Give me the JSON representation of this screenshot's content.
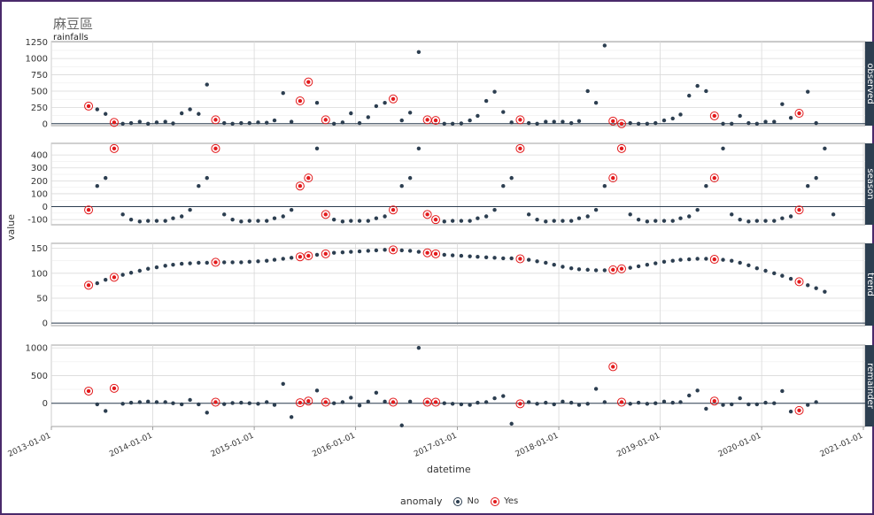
{
  "title": "麻豆區",
  "subtitle": "rainfalls",
  "colors": {
    "no": "#2c3e50",
    "yes": "#e31a1c",
    "strip": "#2c3e50",
    "grid": "#d9d9d9"
  },
  "chart_data": {
    "type": "scatter",
    "xlabel": "datetime",
    "ylabel": "value",
    "x_ticks": [
      "2013-01-01",
      "2014-01-01",
      "2015-01-01",
      "2016-01-01",
      "2017-01-01",
      "2018-01-01",
      "2019-01-01",
      "2020-01-01",
      "2021-01-01"
    ],
    "x_range": [
      "2013-01-01",
      "2021-01-01"
    ],
    "dates": [
      "2013-05",
      "2013-06",
      "2013-07",
      "2013-08",
      "2013-09",
      "2013-10",
      "2013-11",
      "2013-12",
      "2014-01",
      "2014-02",
      "2014-03",
      "2014-04",
      "2014-05",
      "2014-06",
      "2014-07",
      "2014-08",
      "2014-09",
      "2014-10",
      "2014-11",
      "2014-12",
      "2015-01",
      "2015-02",
      "2015-03",
      "2015-04",
      "2015-05",
      "2015-06",
      "2015-07",
      "2015-08",
      "2015-09",
      "2015-10",
      "2015-11",
      "2015-12",
      "2016-01",
      "2016-02",
      "2016-03",
      "2016-04",
      "2016-05",
      "2016-06",
      "2016-07",
      "2016-08",
      "2016-09",
      "2016-10",
      "2016-11",
      "2016-12",
      "2017-01",
      "2017-02",
      "2017-03",
      "2017-04",
      "2017-05",
      "2017-06",
      "2017-07",
      "2017-08",
      "2017-09",
      "2017-10",
      "2017-11",
      "2017-12",
      "2018-01",
      "2018-02",
      "2018-03",
      "2018-04",
      "2018-05",
      "2018-06",
      "2018-07",
      "2018-08",
      "2018-09",
      "2018-10",
      "2018-11",
      "2018-12",
      "2019-01",
      "2019-02",
      "2019-03",
      "2019-04",
      "2019-05",
      "2019-06",
      "2019-07",
      "2019-08",
      "2019-09",
      "2019-10",
      "2019-11",
      "2019-12",
      "2020-01",
      "2020-02",
      "2020-03",
      "2020-04",
      "2020-05",
      "2020-06",
      "2020-07",
      "2020-08",
      "2020-09"
    ],
    "anomaly_dates": [
      "2013-05",
      "2013-08",
      "2014-08",
      "2015-06",
      "2015-07",
      "2015-09",
      "2016-05",
      "2016-09",
      "2016-10",
      "2017-08",
      "2018-07",
      "2018-08",
      "2019-07",
      "2020-05"
    ],
    "legend": {
      "title": "anomaly",
      "entries": [
        "No",
        "Yes"
      ],
      "placement": "bottom"
    },
    "facets": [
      {
        "name": "observed",
        "ylim": [
          -30,
          1260
        ],
        "yticks": [
          0,
          250,
          500,
          750,
          1000,
          1250
        ],
        "values": [
          270,
          220,
          150,
          20,
          0,
          10,
          30,
          0,
          20,
          30,
          5,
          160,
          220,
          150,
          600,
          60,
          10,
          0,
          10,
          10,
          20,
          15,
          50,
          470,
          30,
          350,
          640,
          320,
          60,
          0,
          20,
          160,
          10,
          100,
          270,
          320,
          380,
          50,
          170,
          1100,
          60,
          50,
          0,
          0,
          5,
          50,
          120,
          350,
          490,
          180,
          20,
          60,
          10,
          0,
          30,
          30,
          30,
          10,
          40,
          500,
          320,
          1200,
          40,
          0,
          10,
          0,
          0,
          10,
          50,
          80,
          140,
          430,
          580,
          500,
          120,
          0,
          0,
          120,
          10,
          0,
          30,
          30,
          300,
          90,
          160,
          490,
          10
        ]
      },
      {
        "name": "season",
        "ylim": [
          -140,
          490
        ],
        "yticks": [
          -100,
          0,
          100,
          200,
          300,
          400
        ],
        "values": [
          -25,
          160,
          222,
          450,
          -60,
          -100,
          -115,
          -110,
          -110,
          -110,
          -90,
          -75,
          -25,
          160,
          222,
          450,
          -60,
          -100,
          -115,
          -110,
          -110,
          -110,
          -90,
          -75,
          -25,
          160,
          222,
          450,
          -60,
          -100,
          -115,
          -110,
          -110,
          -110,
          -90,
          -75,
          -25,
          160,
          222,
          450,
          -60,
          -100,
          -115,
          -110,
          -110,
          -110,
          -90,
          -75,
          -25,
          160,
          222,
          450,
          -60,
          -100,
          -115,
          -110,
          -110,
          -110,
          -90,
          -75,
          -25,
          160,
          222,
          450,
          -60,
          -100,
          -115,
          -110,
          -110,
          -110,
          -90,
          -75,
          -25,
          160,
          222,
          450,
          -60,
          -100,
          -115,
          -110,
          -110,
          -110,
          -90,
          -75,
          -25,
          160,
          222,
          450,
          -60
        ]
      },
      {
        "name": "trend",
        "ylim": [
          -5,
          160
        ],
        "yticks": [
          0,
          50,
          100,
          150
        ],
        "values": [
          76,
          80,
          87,
          92,
          97,
          101,
          105,
          109,
          112,
          115,
          117,
          119,
          120,
          121,
          121,
          122,
          122,
          122,
          122,
          123,
          124,
          125,
          127,
          129,
          131,
          133,
          135,
          137,
          139,
          141,
          142,
          143,
          144,
          145,
          146,
          147,
          147,
          146,
          145,
          143,
          141,
          139,
          137,
          136,
          135,
          134,
          133,
          132,
          131,
          130,
          130,
          129,
          127,
          124,
          121,
          117,
          113,
          110,
          108,
          107,
          106,
          106,
          107,
          109,
          111,
          114,
          117,
          120,
          123,
          125,
          127,
          128,
          129,
          129,
          128,
          127,
          125,
          121,
          116,
          110,
          105,
          100,
          95,
          89,
          83,
          76,
          70,
          63
        ]
      },
      {
        "name": "remainder",
        "ylim": [
          -420,
          1050
        ],
        "yticks": [
          0,
          500,
          1000
        ],
        "values": [
          220,
          -20,
          -140,
          270,
          -10,
          10,
          20,
          30,
          20,
          20,
          0,
          -20,
          60,
          -20,
          -170,
          20,
          -15,
          5,
          10,
          0,
          -10,
          20,
          -30,
          350,
          -250,
          10,
          40,
          230,
          20,
          0,
          20,
          100,
          -40,
          30,
          190,
          30,
          20,
          -400,
          30,
          1000,
          20,
          20,
          0,
          -10,
          -20,
          -30,
          10,
          20,
          90,
          130,
          -370,
          -10,
          20,
          -10,
          10,
          -20,
          30,
          10,
          -30,
          -10,
          260,
          20,
          660,
          20,
          -10,
          10,
          -10,
          0,
          30,
          10,
          20,
          140,
          230,
          -100,
          40,
          -30,
          -20,
          90,
          -20,
          -20,
          10,
          0,
          220,
          -150,
          -130,
          -30,
          20
        ]
      }
    ]
  }
}
